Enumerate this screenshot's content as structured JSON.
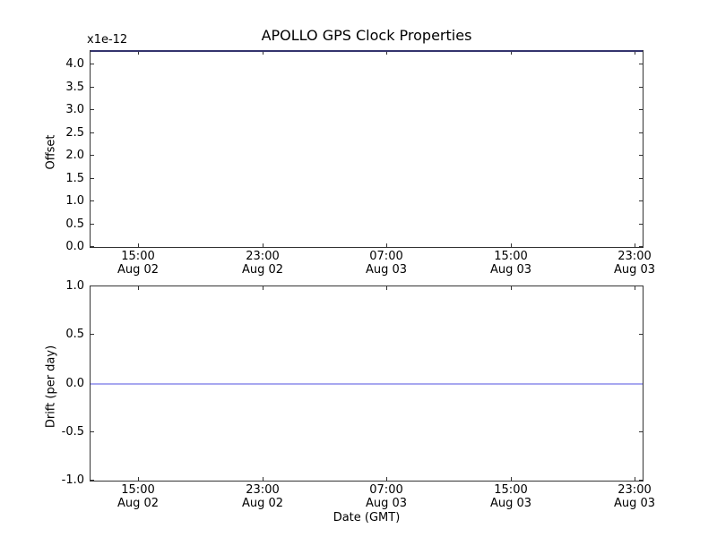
{
  "figure": {
    "title": "APOLLO GPS Clock Properties",
    "offset_scale_label": "x1e-12",
    "xlabel": "Date (GMT)"
  },
  "colors": {
    "background": "#ffffff",
    "spine": "#333333",
    "offset_line_over_spine": "#34346e",
    "drift_line": "#a8a8f0"
  },
  "chart_data": [
    {
      "type": "line",
      "name": "offset-plot",
      "title": "APOLLO GPS Clock Properties",
      "ylabel": "Offset",
      "y_scale_label": "x1e-12",
      "ylim": [
        0.0,
        4.3
      ],
      "grid": false,
      "yticks": [
        {
          "label": "4.0",
          "value": 4.0
        },
        {
          "label": "3.5",
          "value": 3.5
        },
        {
          "label": "3.0",
          "value": 3.0
        },
        {
          "label": "2.5",
          "value": 2.5
        },
        {
          "label": "2.0",
          "value": 2.0
        },
        {
          "label": "1.5",
          "value": 1.5
        },
        {
          "label": "1.0",
          "value": 1.0
        },
        {
          "label": "0.5",
          "value": 0.5
        },
        {
          "label": "0.0",
          "value": 0.0
        }
      ],
      "xticks": [
        {
          "frac": 0.086,
          "time": "15:00",
          "date": "Aug 02"
        },
        {
          "frac": 0.311,
          "time": "23:00",
          "date": "Aug 02"
        },
        {
          "frac": 0.536,
          "time": "07:00",
          "date": "Aug 03"
        },
        {
          "frac": 0.761,
          "time": "15:00",
          "date": "Aug 03"
        },
        {
          "frac": 0.985,
          "time": "23:00",
          "date": "Aug 03"
        }
      ],
      "series": [
        {
          "name": "offset",
          "shape": "constant-horizontal-line",
          "value_x1e12_est": 4.3,
          "at_top_edge": true,
          "color": "#34346e"
        }
      ]
    },
    {
      "type": "line",
      "name": "drift-plot",
      "ylabel": "Drift (per day)",
      "xlabel": "Date (GMT)",
      "ylim": [
        -1.0,
        1.0
      ],
      "grid": false,
      "yticks": [
        {
          "label": "1.0",
          "value": 1.0
        },
        {
          "label": "0.5",
          "value": 0.5
        },
        {
          "label": "0.0",
          "value": 0.0
        },
        {
          "label": "-0.5",
          "value": -0.5
        },
        {
          "label": "-1.0",
          "value": -1.0
        }
      ],
      "xticks": [
        {
          "frac": 0.086,
          "time": "15:00",
          "date": "Aug 02"
        },
        {
          "frac": 0.311,
          "time": "23:00",
          "date": "Aug 02"
        },
        {
          "frac": 0.536,
          "time": "07:00",
          "date": "Aug 03"
        },
        {
          "frac": 0.761,
          "time": "15:00",
          "date": "Aug 03"
        },
        {
          "frac": 0.985,
          "time": "23:00",
          "date": "Aug 03"
        }
      ],
      "series": [
        {
          "name": "drift",
          "shape": "constant-horizontal-line",
          "value": 0.0,
          "at_top_edge": false,
          "color": "#a8a8f0"
        }
      ]
    }
  ]
}
